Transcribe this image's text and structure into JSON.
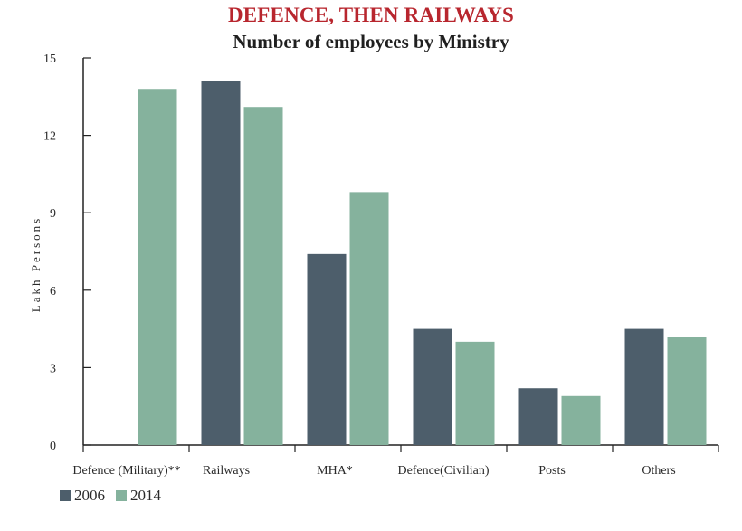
{
  "title": "DEFENCE, THEN RAILWAYS",
  "subtitle": "Number of employees by Ministry",
  "chart_data": {
    "type": "bar",
    "title": "DEFENCE, THEN RAILWAYS",
    "subtitle": "Number of employees by Ministry",
    "xlabel": "",
    "ylabel": "Lakh Persons",
    "ylim": [
      0,
      15
    ],
    "yticks": [
      "0",
      "3",
      "6",
      "9",
      "12",
      "15"
    ],
    "grid": false,
    "legend": "bottom-left",
    "categories": [
      "Defence (Military)**",
      "Railways",
      "MHA*",
      "Defence(Civilian)",
      "Posts",
      "Others"
    ],
    "series": [
      {
        "name": "2006",
        "color": "#4d5e6b",
        "values": [
          null,
          14.1,
          7.4,
          4.5,
          2.2,
          4.5
        ]
      },
      {
        "name": "2014",
        "color": "#85b29d",
        "values": [
          13.8,
          13.1,
          9.8,
          4.0,
          1.9,
          4.2
        ]
      }
    ]
  }
}
